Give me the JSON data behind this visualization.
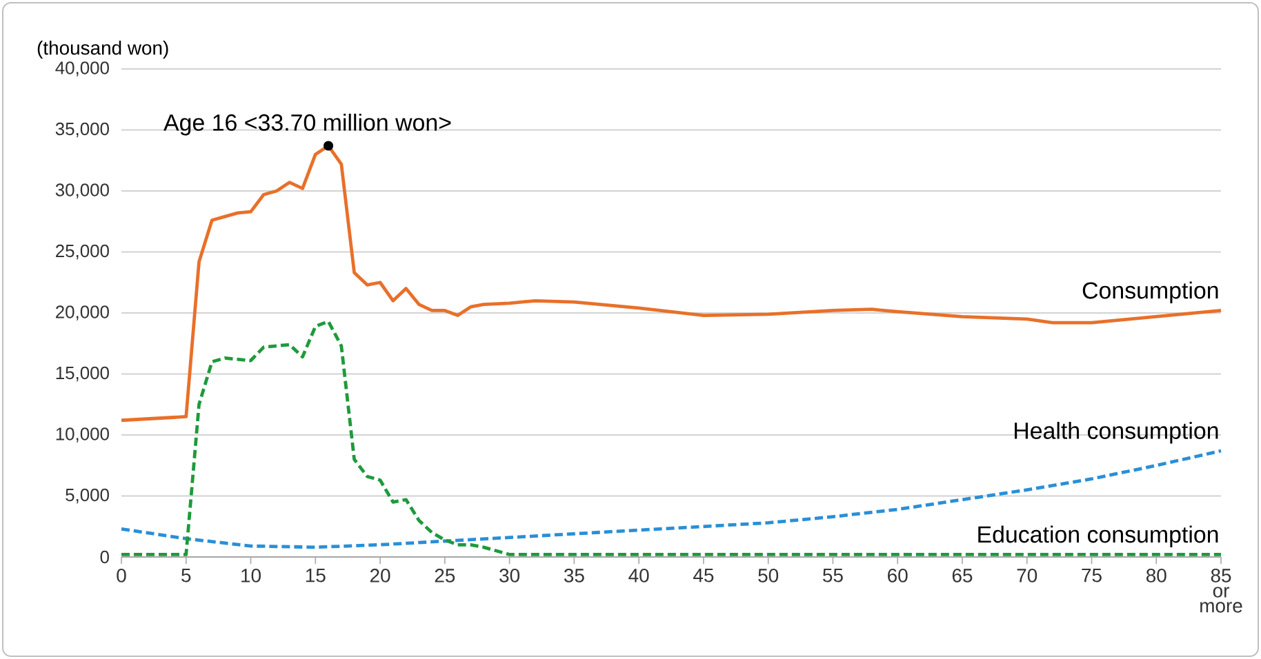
{
  "chart_data": {
    "type": "line",
    "ylabel": "(thousand won)",
    "xlim": [
      0,
      85
    ],
    "xticks": [
      0,
      5,
      10,
      15,
      20,
      25,
      30,
      35,
      40,
      45,
      50,
      55,
      60,
      65,
      70,
      75,
      80,
      {
        "value": 85,
        "label": "85 or more"
      }
    ],
    "ylim": [
      0,
      40000
    ],
    "yticks": [
      {
        "value": 0,
        "label": "0"
      },
      {
        "value": 5000,
        "label": "5,000"
      },
      {
        "value": 10000,
        "label": "10,000"
      },
      {
        "value": 15000,
        "label": "15,000"
      },
      {
        "value": 20000,
        "label": "20,000"
      },
      {
        "value": 25000,
        "label": "25,000"
      },
      {
        "value": 30000,
        "label": "30,000"
      },
      {
        "value": 35000,
        "label": "35,000"
      },
      {
        "value": 40000,
        "label": "40,000"
      }
    ],
    "grid": "y",
    "legend": false,
    "annotations": [
      {
        "text": "Age 16 <33.70 million won>",
        "x": 16,
        "y": 33700
      }
    ],
    "series": [
      {
        "name": "Consumption",
        "color": "#e8702a",
        "line_style": "solid",
        "x": [
          0,
          5,
          6,
          7,
          8,
          9,
          10,
          11,
          12,
          13,
          14,
          15,
          16,
          17,
          18,
          19,
          20,
          21,
          22,
          23,
          24,
          25,
          26,
          27,
          28,
          30,
          32,
          35,
          40,
          45,
          50,
          55,
          58,
          60,
          65,
          70,
          72,
          75,
          80,
          85
        ],
        "values": [
          11200,
          11500,
          24200,
          27600,
          27900,
          28200,
          28300,
          29700,
          30000,
          30700,
          30200,
          33000,
          33700,
          32200,
          23300,
          22300,
          22500,
          21000,
          22000,
          20700,
          20200,
          20200,
          19800,
          20500,
          20700,
          20800,
          21000,
          20900,
          20400,
          19800,
          19900,
          20200,
          20300,
          20100,
          19700,
          19500,
          19200,
          19200,
          19700,
          20200
        ]
      },
      {
        "name": "Health consumption",
        "color": "#2a8fd6",
        "line_style": "dashed",
        "x": [
          0,
          5,
          10,
          15,
          20,
          25,
          30,
          35,
          40,
          45,
          50,
          55,
          60,
          65,
          70,
          75,
          80,
          85
        ],
        "values": [
          2300,
          1500,
          900,
          800,
          1000,
          1300,
          1600,
          1900,
          2200,
          2500,
          2800,
          3300,
          3900,
          4700,
          5500,
          6400,
          7500,
          8700
        ]
      },
      {
        "name": "Education consumption",
        "color": "#1e9a3c",
        "line_style": "dashed",
        "x": [
          0,
          5,
          6,
          7,
          8,
          10,
          11,
          13,
          14,
          15,
          16,
          17,
          18,
          19,
          20,
          21,
          22,
          23,
          24,
          25,
          26,
          27,
          28,
          30,
          85
        ],
        "values": [
          200,
          200,
          12500,
          16000,
          16300,
          16100,
          17200,
          17400,
          16400,
          18900,
          19300,
          17300,
          8000,
          6600,
          6300,
          4500,
          4700,
          3000,
          2000,
          1400,
          1000,
          1000,
          800,
          200,
          200
        ]
      }
    ]
  }
}
